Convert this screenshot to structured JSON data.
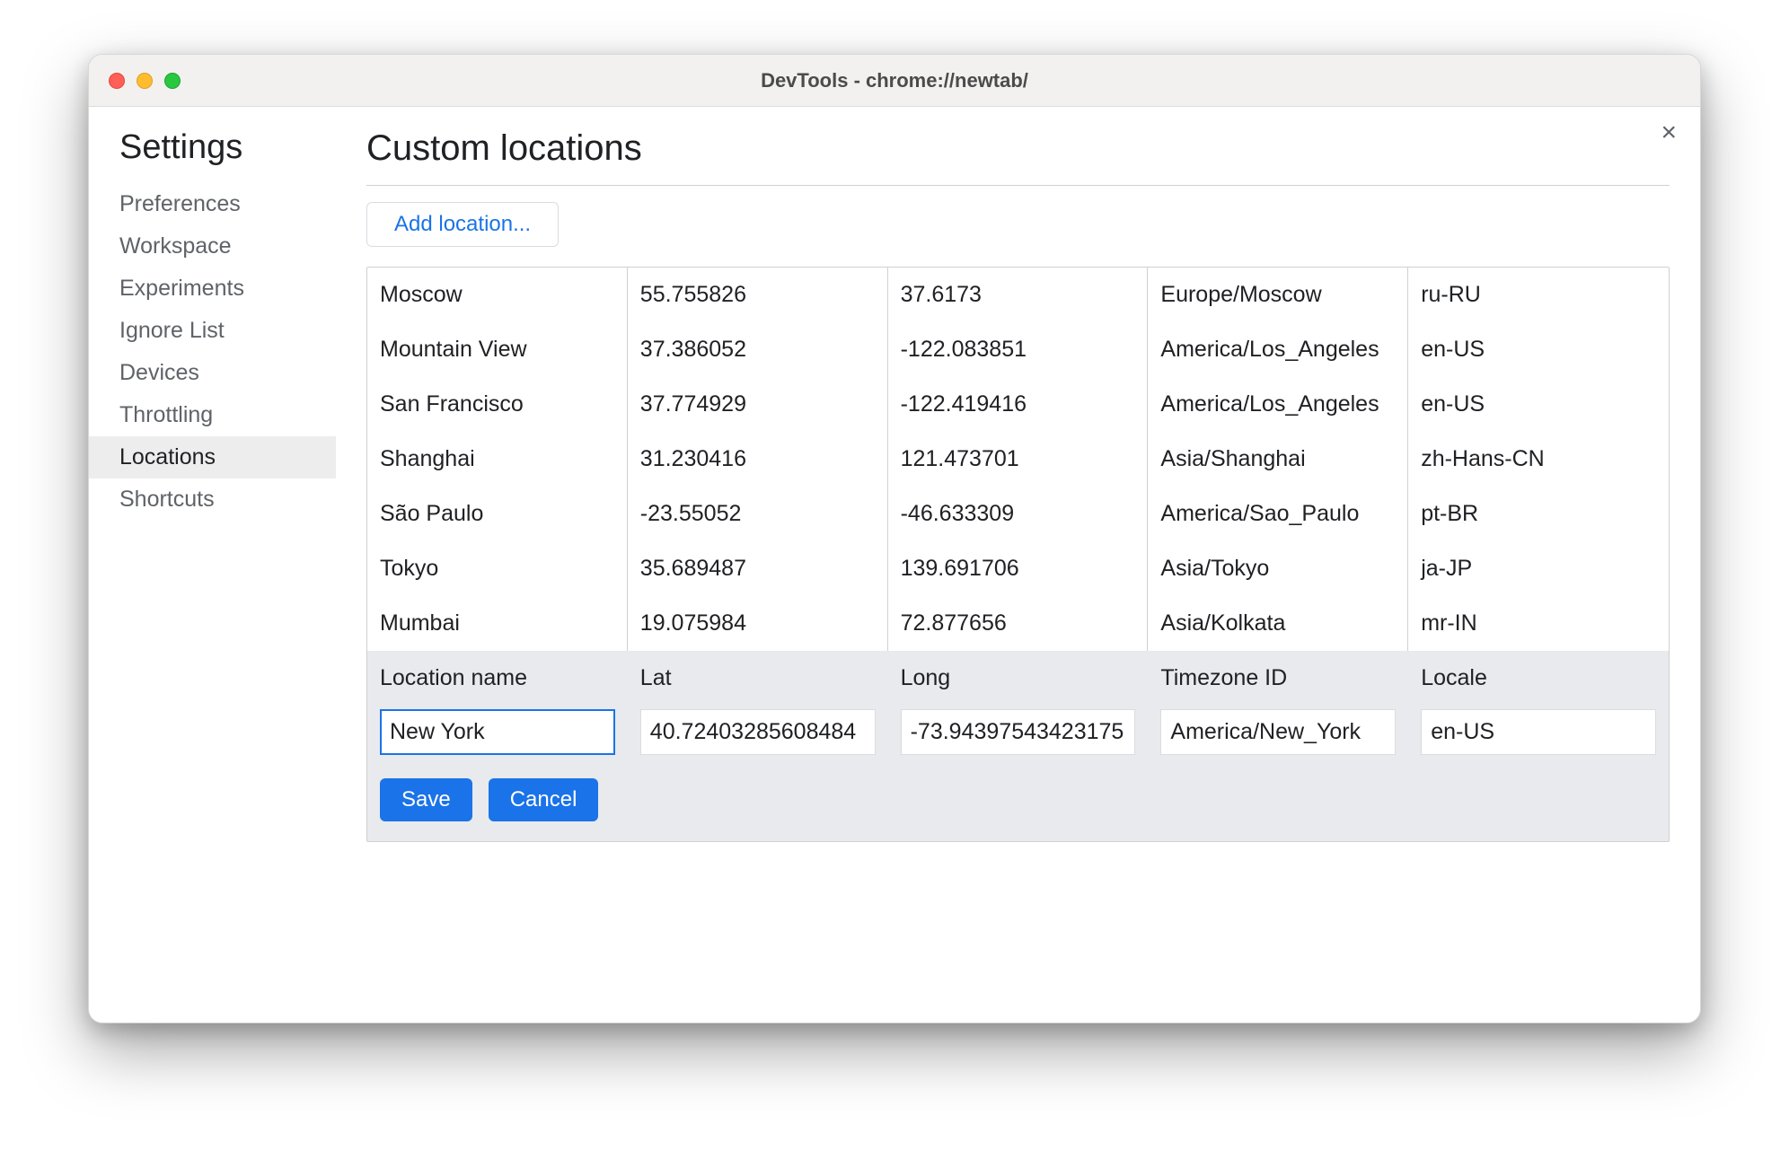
{
  "window": {
    "title": "DevTools - chrome://newtab/",
    "traffic_colors": {
      "close": "#ff5f57",
      "min": "#febc2e",
      "max": "#28c840"
    }
  },
  "sidebar": {
    "title": "Settings",
    "items": [
      {
        "label": "Preferences",
        "selected": false
      },
      {
        "label": "Workspace",
        "selected": false
      },
      {
        "label": "Experiments",
        "selected": false
      },
      {
        "label": "Ignore List",
        "selected": false
      },
      {
        "label": "Devices",
        "selected": false
      },
      {
        "label": "Throttling",
        "selected": false
      },
      {
        "label": "Locations",
        "selected": true
      },
      {
        "label": "Shortcuts",
        "selected": false
      }
    ]
  },
  "page": {
    "title": "Custom locations",
    "add_button_label": "Add location...",
    "close_glyph": "×"
  },
  "table": {
    "columns": [
      "name",
      "lat",
      "long",
      "timezone",
      "locale"
    ],
    "rows": [
      {
        "name": "Moscow",
        "lat": "55.755826",
        "long": "37.6173",
        "timezone": "Europe/Moscow",
        "locale": "ru-RU"
      },
      {
        "name": "Mountain View",
        "lat": "37.386052",
        "long": "-122.083851",
        "timezone": "America/Los_Angeles",
        "locale": "en-US"
      },
      {
        "name": "San Francisco",
        "lat": "37.774929",
        "long": "-122.419416",
        "timezone": "America/Los_Angeles",
        "locale": "en-US"
      },
      {
        "name": "Shanghai",
        "lat": "31.230416",
        "long": "121.473701",
        "timezone": "Asia/Shanghai",
        "locale": "zh-Hans-CN"
      },
      {
        "name": "São Paulo",
        "lat": "-23.55052",
        "long": "-46.633309",
        "timezone": "America/Sao_Paulo",
        "locale": "pt-BR"
      },
      {
        "name": "Tokyo",
        "lat": "35.689487",
        "long": "139.691706",
        "timezone": "Asia/Tokyo",
        "locale": "ja-JP"
      },
      {
        "name": "Mumbai",
        "lat": "19.075984",
        "long": "72.877656",
        "timezone": "Asia/Kolkata",
        "locale": "mr-IN"
      }
    ]
  },
  "editor": {
    "headers": {
      "name": "Location name",
      "lat": "Lat",
      "long": "Long",
      "timezone": "Timezone ID",
      "locale": "Locale"
    },
    "values": {
      "name": "New York",
      "lat": "40.72403285608484",
      "long": "-73.94397543423175",
      "timezone": "America/New_York",
      "locale": "en-US"
    },
    "focused_field": "name",
    "save_label": "Save",
    "cancel_label": "Cancel"
  },
  "style": {
    "colors": {
      "window_bg": "#ffffff",
      "titlebar_bg": "#f2f1f0",
      "border": "#d0d0d0",
      "text_primary": "#202124",
      "text_secondary": "#5f6368",
      "accent": "#1a73e8",
      "editor_bg": "#e8eaed",
      "nav_selected_bg": "#ededed"
    },
    "fontsizes": {
      "sidebar_title": 38,
      "page_title": 40,
      "nav_item": 25,
      "table": 25,
      "button": 24
    }
  }
}
